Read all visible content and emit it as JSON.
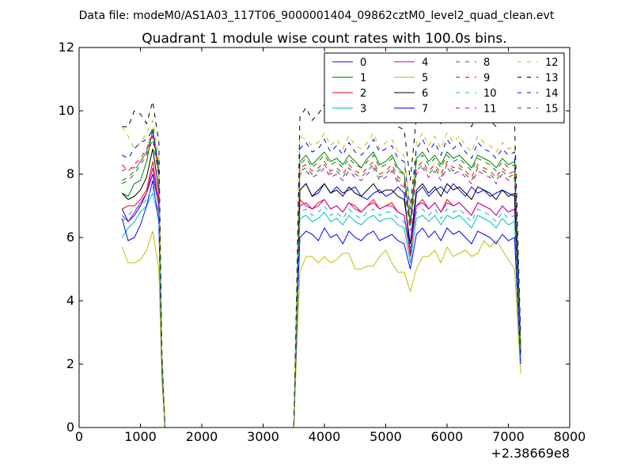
{
  "chart_data": {
    "type": "line",
    "suptitle": "Data file: modeM0/AS1A03_117T06_9000001404_09862cztM0_level2_quad_clean.evt",
    "title": "Quadrant 1 module wise count rates with 100.0s bins.",
    "xlabel": "",
    "ylabel": "",
    "x_offset_label": "+2.38669e8",
    "xlim": [
      0,
      8000
    ],
    "ylim": [
      0,
      12
    ],
    "xticks": [
      0,
      1000,
      2000,
      3000,
      4000,
      5000,
      6000,
      7000,
      8000
    ],
    "yticks": [
      0,
      2,
      4,
      6,
      8,
      10,
      12
    ],
    "grid": false,
    "legend_position": "top-right",
    "x": [
      700,
      800,
      900,
      1000,
      1100,
      1200,
      1300,
      1350,
      1400,
      1450,
      3500,
      3550,
      3600,
      3700,
      3800,
      3900,
      4000,
      4100,
      4200,
      4300,
      4400,
      4500,
      4600,
      4700,
      4800,
      4900,
      5000,
      5100,
      5200,
      5300,
      5400,
      5500,
      5600,
      5700,
      5800,
      5900,
      6000,
      6100,
      6200,
      6300,
      6400,
      6500,
      6600,
      6700,
      6800,
      6900,
      7000,
      7100,
      7200
    ],
    "series": [
      {
        "name": "0",
        "color": "#0000ff",
        "dash": "solid",
        "values": [
          6.9,
          6.5,
          6.7,
          7.0,
          7.4,
          8.0,
          7.0,
          2.0,
          0,
          0,
          0,
          3.5,
          7.5,
          7.7,
          7.3,
          7.4,
          7.7,
          7.4,
          7.6,
          7.4,
          7.5,
          7.6,
          7.3,
          7.2,
          7.4,
          7.5,
          7.3,
          7.4,
          7.6,
          7.4,
          5.5,
          7.4,
          7.6,
          7.3,
          7.5,
          7.6,
          7.4,
          7.7,
          7.5,
          7.3,
          7.6,
          7.4,
          7.5,
          7.3,
          7.4,
          7.5,
          7.4,
          7.3,
          2.2
        ]
      },
      {
        "name": "1",
        "color": "#008000",
        "dash": "solid",
        "values": [
          7.4,
          7.3,
          7.7,
          7.8,
          8.4,
          9.4,
          8.0,
          2.0,
          0,
          0,
          0,
          3.8,
          8.4,
          8.6,
          8.3,
          8.5,
          8.7,
          8.4,
          8.5,
          8.3,
          8.6,
          8.4,
          8.2,
          8.5,
          8.7,
          8.3,
          8.4,
          8.6,
          8.2,
          8.0,
          6.5,
          8.5,
          8.7,
          8.4,
          8.6,
          8.3,
          8.7,
          8.5,
          8.6,
          8.4,
          8.2,
          8.6,
          8.5,
          8.4,
          8.2,
          8.5,
          8.3,
          8.4,
          2.5
        ]
      },
      {
        "name": "2",
        "color": "#ff0000",
        "dash": "solid",
        "values": [
          6.9,
          7.0,
          7.0,
          7.2,
          7.5,
          8.4,
          7.2,
          2.0,
          0,
          0,
          0,
          3.6,
          7.2,
          7.0,
          6.9,
          7.1,
          7.2,
          6.9,
          7.0,
          6.8,
          7.1,
          7.0,
          6.8,
          7.0,
          7.2,
          6.9,
          7.0,
          7.1,
          6.8,
          6.7,
          5.4,
          7.0,
          7.2,
          6.9,
          7.1,
          6.8,
          7.2,
          7.0,
          7.1,
          6.9,
          6.7,
          7.1,
          7.0,
          6.9,
          6.7,
          7.0,
          6.8,
          6.9,
          2.3
        ]
      },
      {
        "name": "3",
        "color": "#00bfbf",
        "dash": "solid",
        "values": [
          6.0,
          6.3,
          6.5,
          6.8,
          7.0,
          7.4,
          6.6,
          1.8,
          0,
          0,
          0,
          3.3,
          6.6,
          6.7,
          6.5,
          6.6,
          6.8,
          6.5,
          6.6,
          6.4,
          6.7,
          6.5,
          6.4,
          6.6,
          6.7,
          6.5,
          6.6,
          6.6,
          6.4,
          6.3,
          5.2,
          6.6,
          6.7,
          6.5,
          6.7,
          6.4,
          6.7,
          6.6,
          6.7,
          6.5,
          6.3,
          6.7,
          6.6,
          6.5,
          6.3,
          6.6,
          6.4,
          6.5,
          2.1
        ]
      },
      {
        "name": "4",
        "color": "#bf00bf",
        "dash": "solid",
        "values": [
          6.7,
          6.5,
          6.8,
          7.1,
          7.4,
          8.2,
          7.0,
          2.0,
          0,
          0,
          0,
          3.5,
          7.0,
          7.1,
          6.9,
          7.0,
          7.2,
          6.9,
          7.0,
          6.8,
          7.1,
          6.9,
          6.8,
          7.0,
          7.1,
          6.9,
          7.0,
          7.0,
          6.8,
          6.7,
          5.6,
          7.0,
          7.1,
          6.9,
          7.1,
          6.8,
          7.1,
          7.0,
          7.1,
          6.9,
          6.7,
          7.1,
          7.0,
          6.9,
          6.7,
          7.0,
          6.8,
          6.9,
          2.3
        ]
      },
      {
        "name": "5",
        "color": "#bfbf00",
        "dash": "solid",
        "values": [
          5.7,
          5.2,
          5.2,
          5.3,
          5.6,
          6.2,
          5.0,
          1.5,
          0,
          0,
          0,
          2.5,
          4.9,
          5.4,
          5.4,
          5.2,
          5.4,
          5.2,
          5.3,
          5.5,
          5.5,
          5.0,
          5.0,
          5.1,
          5.1,
          5.4,
          5.6,
          5.2,
          4.9,
          4.9,
          4.3,
          5.0,
          5.4,
          5.4,
          5.6,
          5.2,
          5.7,
          5.4,
          5.5,
          5.6,
          5.4,
          5.5,
          5.9,
          5.7,
          5.9,
          5.6,
          5.3,
          5.0,
          1.7
        ]
      },
      {
        "name": "6",
        "color": "#000000",
        "dash": "solid",
        "values": [
          7.4,
          7.2,
          7.3,
          7.5,
          7.9,
          8.8,
          7.5,
          2.0,
          0,
          0,
          0,
          3.7,
          7.5,
          7.7,
          7.3,
          7.5,
          7.7,
          7.4,
          7.5,
          7.3,
          7.6,
          7.4,
          7.3,
          7.5,
          7.7,
          7.4,
          7.5,
          7.5,
          7.3,
          7.2,
          5.8,
          7.5,
          7.7,
          7.4,
          7.6,
          7.3,
          7.7,
          7.5,
          7.6,
          7.4,
          7.2,
          7.6,
          7.5,
          7.4,
          7.2,
          7.5,
          7.3,
          7.4,
          2.4
        ]
      },
      {
        "name": "7",
        "color": "#0000ff",
        "dash": "solid",
        "values": [
          6.6,
          5.9,
          6.0,
          6.4,
          7.0,
          7.8,
          6.5,
          1.9,
          0,
          0,
          0,
          3.3,
          6.0,
          6.2,
          6.1,
          5.9,
          6.3,
          6.0,
          6.1,
          5.8,
          6.2,
          6.0,
          5.9,
          6.1,
          6.2,
          5.9,
          6.0,
          6.1,
          5.9,
          5.8,
          5.0,
          6.1,
          6.3,
          6.0,
          6.2,
          5.9,
          6.3,
          6.1,
          6.2,
          6.0,
          5.8,
          6.2,
          6.1,
          6.0,
          5.8,
          6.1,
          5.9,
          6.0,
          2.0
        ]
      },
      {
        "name": "8",
        "color": "#008000",
        "dash": "dashed",
        "values": [
          7.8,
          7.9,
          8.1,
          8.4,
          8.7,
          9.5,
          8.2,
          2.2,
          0,
          0,
          0,
          4.0,
          8.3,
          8.5,
          8.2,
          8.4,
          8.6,
          8.3,
          8.4,
          8.2,
          8.5,
          8.3,
          8.2,
          8.4,
          8.6,
          8.2,
          8.3,
          8.5,
          8.1,
          8.0,
          6.6,
          8.4,
          8.6,
          8.3,
          8.5,
          8.2,
          8.6,
          8.4,
          8.5,
          8.3,
          8.1,
          8.5,
          8.4,
          8.3,
          8.1,
          8.4,
          8.2,
          8.3,
          2.6
        ]
      },
      {
        "name": "9",
        "color": "#ff0000",
        "dash": "dashed",
        "values": [
          8.3,
          8.1,
          8.3,
          8.5,
          8.8,
          9.3,
          8.0,
          2.2,
          0,
          0,
          0,
          4.0,
          8.2,
          8.3,
          8.1,
          8.2,
          8.4,
          8.1,
          8.2,
          8.0,
          8.3,
          8.1,
          8.0,
          8.2,
          8.4,
          8.0,
          8.1,
          8.3,
          7.9,
          7.8,
          6.4,
          8.2,
          8.4,
          8.1,
          8.3,
          8.0,
          8.4,
          8.2,
          8.3,
          8.1,
          7.9,
          8.3,
          8.2,
          8.1,
          7.9,
          8.2,
          8.0,
          8.1,
          2.5
        ]
      },
      {
        "name": "10",
        "color": "#00bfbf",
        "dash": "dashed",
        "values": [
          6.5,
          6.7,
          6.9,
          7.0,
          7.2,
          7.6,
          6.8,
          1.9,
          0,
          0,
          0,
          3.4,
          6.8,
          6.9,
          6.7,
          6.8,
          7.0,
          6.7,
          6.8,
          6.6,
          6.9,
          6.7,
          6.6,
          6.8,
          6.9,
          6.7,
          6.8,
          6.8,
          6.6,
          6.5,
          5.6,
          6.8,
          6.9,
          6.7,
          6.9,
          6.6,
          6.9,
          6.8,
          6.9,
          6.7,
          6.5,
          6.9,
          6.8,
          6.7,
          6.5,
          6.8,
          6.6,
          6.7,
          2.2
        ]
      },
      {
        "name": "11",
        "color": "#bf00bf",
        "dash": "dashed",
        "values": [
          8.1,
          8.2,
          8.2,
          8.4,
          8.7,
          9.2,
          8.0,
          2.1,
          0,
          0,
          0,
          3.9,
          8.0,
          8.1,
          7.9,
          8.0,
          8.2,
          7.9,
          8.0,
          7.8,
          8.1,
          7.9,
          7.8,
          8.0,
          8.2,
          7.8,
          7.9,
          8.1,
          7.7,
          7.6,
          6.2,
          8.0,
          8.2,
          7.9,
          8.1,
          7.8,
          8.2,
          8.0,
          8.1,
          7.9,
          7.7,
          8.1,
          8.0,
          7.9,
          7.7,
          8.0,
          7.8,
          7.9,
          2.5
        ]
      },
      {
        "name": "12",
        "color": "#bfbf00",
        "dash": "dashed",
        "values": [
          9.5,
          9.2,
          8.8,
          9.0,
          9.3,
          9.7,
          8.5,
          2.3,
          0,
          0,
          0,
          4.4,
          9.2,
          9.1,
          8.9,
          9.0,
          9.3,
          8.9,
          9.1,
          8.8,
          9.2,
          8.9,
          8.8,
          9.0,
          9.3,
          8.8,
          9.0,
          9.1,
          8.7,
          8.6,
          7.0,
          9.0,
          9.3,
          8.9,
          9.2,
          8.8,
          9.3,
          9.0,
          9.2,
          8.9,
          8.7,
          9.2,
          9.0,
          8.9,
          8.7,
          9.0,
          8.8,
          8.9,
          2.7
        ]
      },
      {
        "name": "13",
        "color": "#000000",
        "dash": "dashed",
        "values": [
          9.5,
          9.5,
          10.0,
          9.9,
          9.6,
          10.3,
          9.0,
          2.4,
          0,
          0,
          0,
          4.6,
          9.8,
          10.1,
          9.7,
          9.9,
          10.2,
          9.8,
          9.9,
          9.6,
          10.0,
          9.8,
          9.6,
          9.8,
          10.1,
          9.7,
          9.8,
          10.0,
          9.5,
          9.4,
          7.8,
          9.8,
          10.1,
          9.7,
          10.0,
          9.6,
          10.1,
          9.8,
          10.0,
          9.7,
          9.5,
          10.0,
          9.8,
          9.7,
          9.5,
          9.8,
          9.6,
          9.7,
          2.9
        ]
      },
      {
        "name": "14",
        "color": "#0000ff",
        "dash": "dashed",
        "values": [
          8.6,
          8.5,
          8.8,
          9.0,
          9.1,
          9.4,
          8.2,
          2.2,
          0,
          0,
          0,
          4.2,
          8.8,
          9.0,
          8.7,
          8.8,
          9.1,
          8.7,
          8.9,
          8.6,
          9.0,
          8.7,
          8.6,
          8.8,
          9.1,
          8.7,
          8.8,
          8.9,
          8.5,
          8.4,
          6.9,
          8.8,
          9.1,
          8.7,
          9.0,
          8.6,
          9.1,
          8.8,
          9.0,
          8.7,
          8.5,
          9.0,
          8.8,
          8.7,
          8.5,
          8.8,
          8.6,
          8.7,
          2.7
        ]
      },
      {
        "name": "15",
        "color": "#008000",
        "dash": "dashed",
        "values": [
          7.7,
          7.8,
          8.0,
          8.3,
          8.6,
          9.1,
          7.9,
          2.1,
          0,
          0,
          0,
          3.9,
          8.1,
          8.2,
          8.0,
          8.1,
          8.3,
          8.0,
          8.1,
          7.9,
          8.2,
          8.0,
          7.9,
          8.1,
          8.3,
          7.9,
          8.0,
          8.2,
          7.8,
          7.7,
          6.3,
          8.1,
          8.3,
          8.0,
          8.2,
          7.9,
          8.3,
          8.1,
          8.2,
          8.0,
          7.8,
          8.2,
          8.1,
          8.0,
          7.8,
          8.1,
          7.9,
          8.0,
          2.5
        ]
      }
    ]
  }
}
